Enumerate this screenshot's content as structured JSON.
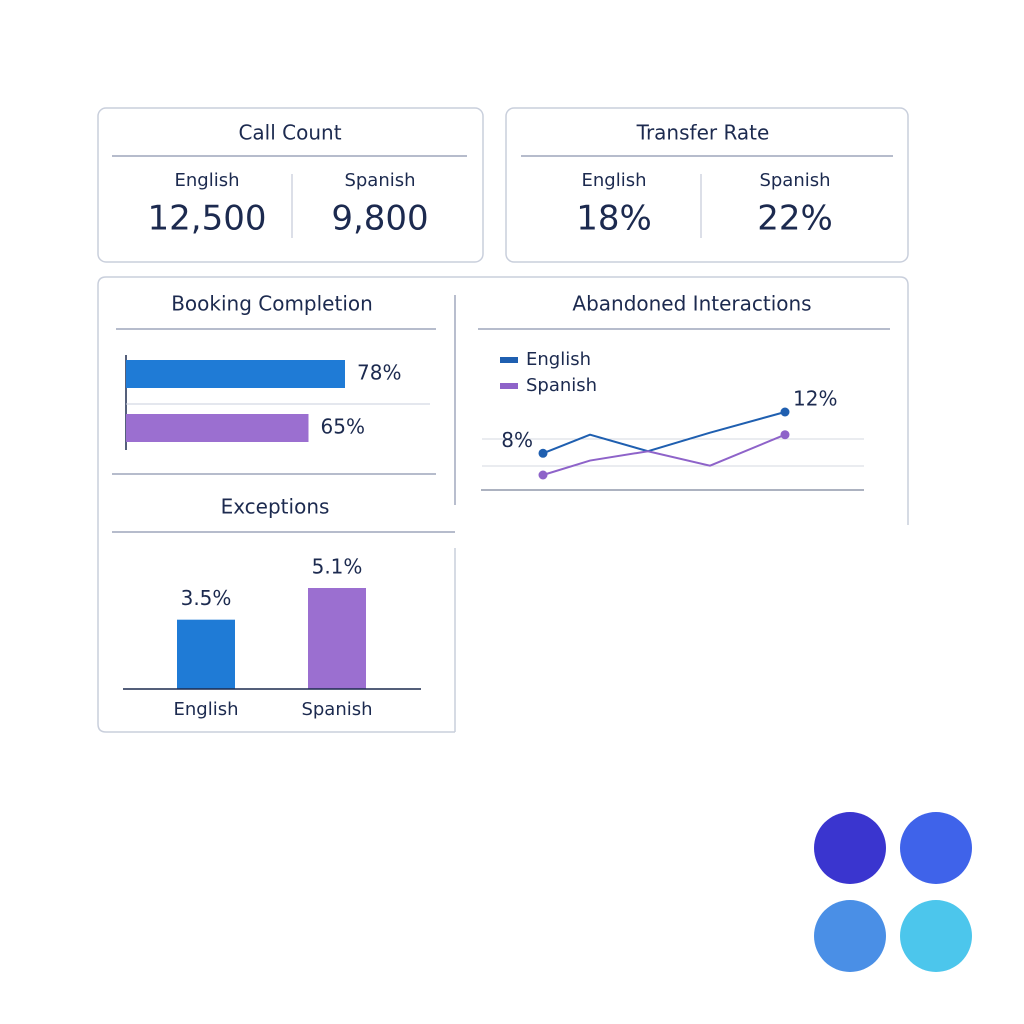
{
  "cards": [
    {
      "title": "Call Count",
      "items": [
        {
          "label": "English",
          "value": "12,500"
        },
        {
          "label": "Spanish",
          "value": "9,800"
        }
      ]
    },
    {
      "title": "Transfer Rate",
      "items": [
        {
          "label": "English",
          "value": "18%"
        },
        {
          "label": "Spanish",
          "value": "22%"
        }
      ]
    }
  ],
  "chart_data": [
    {
      "type": "bar",
      "orientation": "horizontal",
      "title": "Booking Completion",
      "categories": [
        null,
        null
      ],
      "values": [
        78,
        65
      ],
      "value_labels": [
        "78%",
        "65%"
      ],
      "colors": [
        "#1f7bd6",
        "#9b6fd0"
      ]
    },
    {
      "type": "line",
      "title": "Abandoned Interactions",
      "categories": [
        null,
        null,
        null,
        null,
        null
      ],
      "series": [
        {
          "name": "English",
          "color": "#1f5fb0",
          "values": [
            8,
            9.8,
            8.2,
            10.0,
            12
          ],
          "value_labels": [
            "8%",
            null,
            null,
            null,
            "12%"
          ]
        },
        {
          "name": "Spanish",
          "color": "#8e63c9",
          "values": [
            5.9,
            7.3,
            8.2,
            6.8,
            9.8
          ]
        }
      ]
    },
    {
      "type": "bar",
      "orientation": "vertical",
      "title": "Exceptions",
      "categories": [
        "English",
        "Spanish"
      ],
      "values": [
        3.5,
        5.1
      ],
      "value_labels": [
        "3.5%",
        "5.1%"
      ],
      "colors": [
        "#1f7bd6",
        "#9b6fd0"
      ]
    }
  ]
}
